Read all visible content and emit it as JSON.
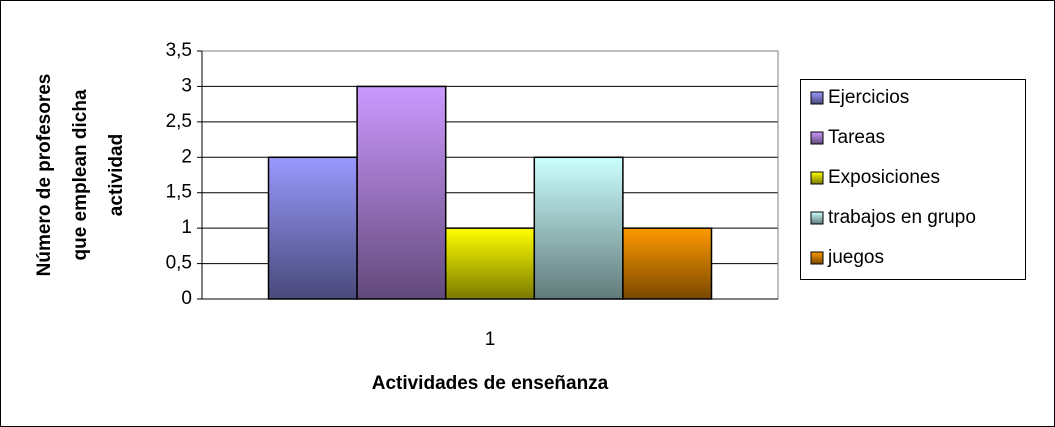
{
  "chart_data": {
    "type": "bar",
    "y_label": [
      "Número de profesores",
      "que emplean dicha",
      "actividad"
    ],
    "x_label": "Actividades de enseñanza",
    "categories": [
      "1"
    ],
    "series": [
      {
        "name": "Ejercicios",
        "color": "#9999ff",
        "values": [
          2
        ]
      },
      {
        "name": "Tareas",
        "color": "#cc99ff",
        "values": [
          3
        ]
      },
      {
        "name": "Exposiciones",
        "color": "#ffff00",
        "values": [
          1
        ]
      },
      {
        "name": "trabajos en grupo",
        "color": "#ccffff",
        "values": [
          2
        ]
      },
      {
        "name": "juegos",
        "color": "#ff9900",
        "values": [
          1
        ]
      }
    ],
    "ylim": [
      0,
      3.5
    ],
    "yticks": [
      0,
      {
        "value": 0.5,
        "label": "0,5"
      },
      1,
      {
        "value": 1.5,
        "label": "1,5"
      },
      2,
      {
        "value": 2.5,
        "label": "2,5"
      },
      3,
      {
        "value": 3.5,
        "label": "3,5"
      }
    ],
    "grid": true,
    "legend": "right"
  }
}
